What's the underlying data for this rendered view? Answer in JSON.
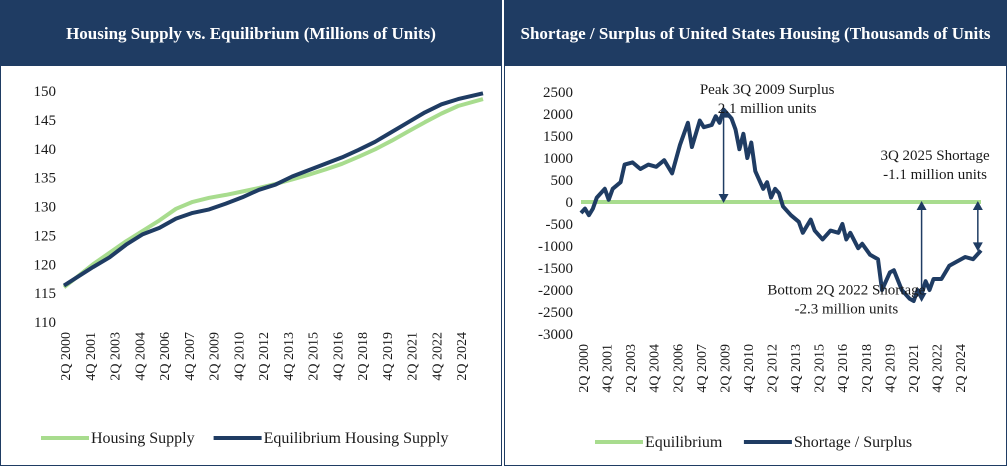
{
  "colors": {
    "header_bg": "#1f3c63",
    "navy": "#1f3c63",
    "green": "#a8dc8e"
  },
  "chart_data": [
    {
      "type": "line",
      "title": "Housing Supply vs. Equilibrium (Millions of Units)",
      "ylim": [
        110,
        150
      ],
      "yticks": [
        "110",
        "115",
        "120",
        "125",
        "130",
        "135",
        "140",
        "145",
        "150"
      ],
      "xticks": [
        "2Q 2000",
        "4Q 2001",
        "2Q 2003",
        "4Q 2004",
        "2Q 2006",
        "4Q 2007",
        "2Q 2009",
        "4Q 2010",
        "2Q 2012",
        "4Q 2013",
        "2Q 2015",
        "4Q 2016",
        "2Q 2018",
        "4Q 2019",
        "2Q 2021",
        "4Q 2022",
        "2Q 2024"
      ],
      "x_start": 2000.25,
      "x_end": 2025.5,
      "grid": false,
      "legend_position": "bottom",
      "series": [
        {
          "name": "Housing Supply",
          "color": "#a8dc8e",
          "points": [
            [
              2000.25,
              116.0
            ],
            [
              2002,
              120.0
            ],
            [
              2004,
              124.0
            ],
            [
              2006,
              127.6
            ],
            [
              2007,
              129.6
            ],
            [
              2008,
              130.8
            ],
            [
              2009,
              131.5
            ],
            [
              2010,
              132.0
            ],
            [
              2011,
              132.6
            ],
            [
              2012,
              133.2
            ],
            [
              2013,
              133.9
            ],
            [
              2014,
              134.7
            ],
            [
              2015,
              135.5
            ],
            [
              2016,
              136.4
            ],
            [
              2017,
              137.4
            ],
            [
              2018,
              138.6
            ],
            [
              2019,
              139.9
            ],
            [
              2020,
              141.4
            ],
            [
              2021,
              143.0
            ],
            [
              2022,
              144.6
            ],
            [
              2023,
              146.1
            ],
            [
              2024,
              147.4
            ],
            [
              2025.5,
              148.6
            ]
          ]
        },
        {
          "name": "Equilibrium Housing Supply",
          "color": "#1f3c63",
          "points": [
            [
              2000.25,
              116.3
            ],
            [
              2002,
              119.5
            ],
            [
              2003,
              121.2
            ],
            [
              2004,
              123.4
            ],
            [
              2005,
              125.2
            ],
            [
              2006,
              126.3
            ],
            [
              2007,
              127.9
            ],
            [
              2008,
              128.9
            ],
            [
              2009,
              129.5
            ],
            [
              2010,
              130.5
            ],
            [
              2011,
              131.6
            ],
            [
              2012,
              132.9
            ],
            [
              2013,
              133.8
            ],
            [
              2014,
              135.2
            ],
            [
              2015,
              136.3
            ],
            [
              2016,
              137.4
            ],
            [
              2017,
              138.5
            ],
            [
              2018,
              139.8
            ],
            [
              2019,
              141.2
            ],
            [
              2020,
              142.9
            ],
            [
              2021,
              144.6
            ],
            [
              2022,
              146.3
            ],
            [
              2023,
              147.7
            ],
            [
              2024,
              148.6
            ],
            [
              2025.5,
              149.6
            ]
          ]
        }
      ]
    },
    {
      "type": "line",
      "title": "Shortage / Surplus of United States Housing (Thousands of Units",
      "ylim": [
        -3000,
        2500
      ],
      "yticks": [
        "-3000",
        "-2500",
        "-2000",
        "-1500",
        "-1000",
        "-500",
        "0",
        "500",
        "1000",
        "1500",
        "2000",
        "2500"
      ],
      "xticks": [
        "2Q 2000",
        "4Q 2001",
        "2Q 2003",
        "4Q 2004",
        "2Q 2006",
        "4Q 2007",
        "2Q 2009",
        "4Q 2010",
        "2Q 2012",
        "4Q 2013",
        "2Q 2015",
        "4Q 2016",
        "2Q 2018",
        "4Q 2019",
        "2Q 2021",
        "4Q 2022",
        "2Q 2024"
      ],
      "x_start": 2000.25,
      "x_end": 2025.5,
      "grid": false,
      "legend_position": "bottom",
      "series": [
        {
          "name": "Equilibrium",
          "color": "#a8dc8e",
          "points": [
            [
              2000.25,
              0
            ],
            [
              2025.5,
              0
            ]
          ]
        },
        {
          "name": "Shortage / Surplus",
          "color": "#1f3c63",
          "points": [
            [
              2000.25,
              -250
            ],
            [
              2000.5,
              -150
            ],
            [
              2000.75,
              -300
            ],
            [
              2001,
              -150
            ],
            [
              2001.25,
              100
            ],
            [
              2001.75,
              300
            ],
            [
              2002,
              50
            ],
            [
              2002.25,
              300
            ],
            [
              2002.75,
              450
            ],
            [
              2003,
              850
            ],
            [
              2003.5,
              900
            ],
            [
              2004,
              750
            ],
            [
              2004.5,
              850
            ],
            [
              2005,
              800
            ],
            [
              2005.5,
              950
            ],
            [
              2006,
              650
            ],
            [
              2006.5,
              1300
            ],
            [
              2007,
              1800
            ],
            [
              2007.25,
              1250
            ],
            [
              2007.75,
              1850
            ],
            [
              2008,
              1700
            ],
            [
              2008.5,
              1750
            ],
            [
              2008.75,
              1950
            ],
            [
              2009,
              1800
            ],
            [
              2009.25,
              2100
            ],
            [
              2009.75,
              1900
            ],
            [
              2010,
              1650
            ],
            [
              2010.25,
              1200
            ],
            [
              2010.5,
              1550
            ],
            [
              2010.75,
              1000
            ],
            [
              2011,
              1350
            ],
            [
              2011.25,
              700
            ],
            [
              2011.75,
              300
            ],
            [
              2012,
              450
            ],
            [
              2012.25,
              100
            ],
            [
              2012.5,
              300
            ],
            [
              2012.75,
              200
            ],
            [
              2013,
              -100
            ],
            [
              2013.5,
              -300
            ],
            [
              2014,
              -450
            ],
            [
              2014.25,
              -700
            ],
            [
              2014.75,
              -400
            ],
            [
              2015,
              -650
            ],
            [
              2015.5,
              -850
            ],
            [
              2016,
              -650
            ],
            [
              2016.5,
              -700
            ],
            [
              2016.75,
              -500
            ],
            [
              2017,
              -850
            ],
            [
              2017.25,
              -700
            ],
            [
              2017.75,
              -1050
            ],
            [
              2018,
              -950
            ],
            [
              2018.5,
              -1200
            ],
            [
              2019,
              -1300
            ],
            [
              2019.25,
              -2000
            ],
            [
              2019.75,
              -1600
            ],
            [
              2020,
              -1550
            ],
            [
              2020.5,
              -2000
            ],
            [
              2021,
              -2200
            ],
            [
              2021.25,
              -2250
            ],
            [
              2021.5,
              -2000
            ],
            [
              2021.75,
              -2100
            ],
            [
              2022,
              -1800
            ],
            [
              2022.25,
              -2000
            ],
            [
              2022.5,
              -1750
            ],
            [
              2023,
              -1750
            ],
            [
              2023.5,
              -1450
            ],
            [
              2024,
              -1350
            ],
            [
              2024.5,
              -1250
            ],
            [
              2025,
              -1300
            ],
            [
              2025.5,
              -1100
            ]
          ]
        }
      ],
      "annotations": [
        {
          "label": "Peak 3Q 2009 Surplus",
          "sub": "2.1 million units",
          "x": 2009.25,
          "y_from": 0,
          "y_to": 2100,
          "text_x": 2012.0,
          "text_y": 2450
        },
        {
          "label": "3Q 2025 Shortage",
          "sub": "-1.1 million units",
          "x": 2025.3,
          "y_from": 0,
          "y_to": -1100,
          "text_x": 2022.6,
          "text_y": 950
        },
        {
          "label": "Bottom 2Q 2022 Shortage",
          "sub": "-2.3 million units",
          "x": 2021.75,
          "y_from": 0,
          "y_to": -2250,
          "text_x": 2017.0,
          "text_y": -2100
        }
      ]
    }
  ]
}
